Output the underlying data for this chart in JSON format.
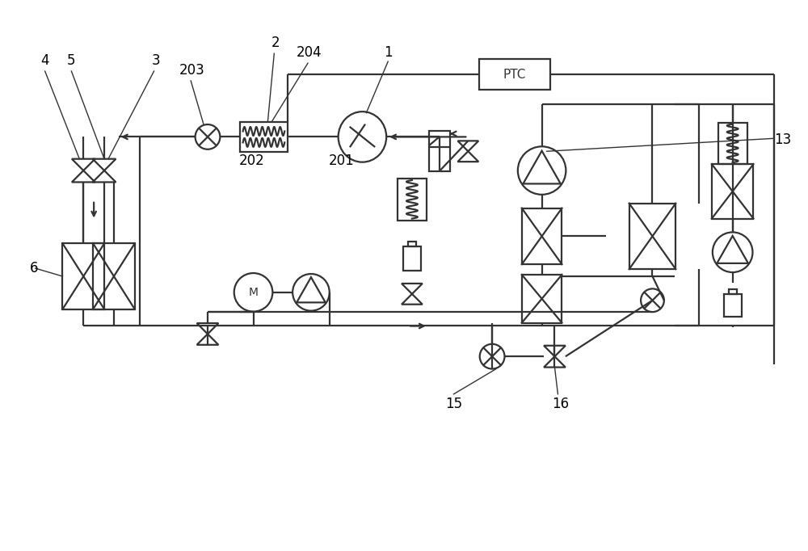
{
  "bg_color": "#ffffff",
  "lc": "#333333",
  "lw": 1.6,
  "fig_width": 10.0,
  "fig_height": 6.82,
  "dpi": 100
}
